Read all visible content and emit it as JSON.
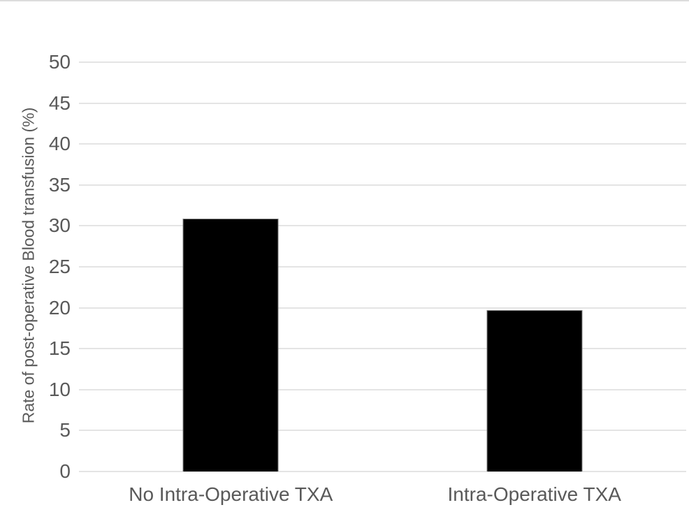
{
  "chart_data": {
    "type": "bar",
    "title": "",
    "xlabel": "",
    "ylabel": "Rate of post-operative Blood transfusion (%)",
    "categories": [
      "No Intra-Operative TXA",
      "Intra-Operative TXA"
    ],
    "values": [
      30.9,
      19.7
    ],
    "ylim": [
      0,
      50
    ],
    "yticks": [
      0,
      5,
      10,
      15,
      20,
      25,
      30,
      35,
      40,
      45,
      50
    ],
    "grid": true,
    "legend": false,
    "bar_color": "#000000",
    "gridline_color": "#e4e4e4",
    "axis_text_color": "#595959",
    "background_color": "#ffffff"
  }
}
